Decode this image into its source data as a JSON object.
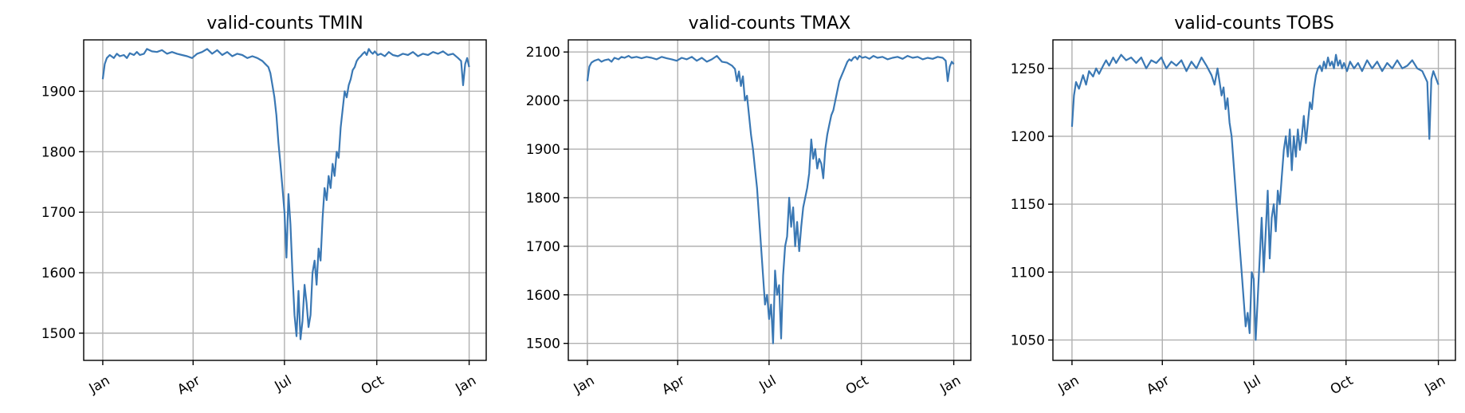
{
  "chart_data": [
    {
      "type": "line",
      "title": "valid-counts TMIN",
      "x_tick_labels": [
        "Jan",
        "Apr",
        "Jul",
        "Oct",
        "Jan"
      ],
      "x_ticks_day": [
        1,
        91,
        182,
        274,
        366
      ],
      "xlim": [
        -18,
        383
      ],
      "ylim": [
        1455,
        1985
      ],
      "y_ticks": [
        1500,
        1600,
        1700,
        1800,
        1900
      ],
      "grid": true,
      "color": "#3a78b4",
      "series": [
        {
          "x": [
            1,
            3,
            5,
            8,
            12,
            15,
            18,
            22,
            25,
            28,
            32,
            35,
            38,
            42,
            45,
            50,
            55,
            60,
            65,
            70,
            75,
            80,
            85,
            90,
            95,
            100,
            105,
            110,
            115,
            120,
            125,
            130,
            135,
            140,
            145,
            150,
            155,
            160,
            163,
            166,
            168,
            170,
            172,
            174,
            176,
            178,
            180,
            182,
            184,
            186,
            188,
            190,
            192,
            194,
            196,
            198,
            200,
            202,
            204,
            206,
            208,
            210,
            212,
            214,
            216,
            218,
            220,
            222,
            224,
            226,
            228,
            230,
            232,
            234,
            236,
            238,
            240,
            242,
            244,
            246,
            248,
            250,
            252,
            254,
            256,
            258,
            260,
            262,
            264,
            266,
            268,
            270,
            272,
            275,
            278,
            282,
            286,
            290,
            295,
            300,
            305,
            310,
            315,
            320,
            325,
            330,
            335,
            340,
            345,
            350,
            355,
            358,
            360,
            362,
            364,
            366
          ],
          "values": [
            1920,
            1945,
            1955,
            1960,
            1955,
            1962,
            1958,
            1960,
            1955,
            1963,
            1960,
            1965,
            1960,
            1962,
            1970,
            1966,
            1965,
            1968,
            1962,
            1965,
            1962,
            1960,
            1958,
            1955,
            1962,
            1965,
            1970,
            1962,
            1968,
            1960,
            1965,
            1958,
            1962,
            1960,
            1955,
            1958,
            1955,
            1950,
            1945,
            1940,
            1930,
            1910,
            1890,
            1860,
            1815,
            1780,
            1740,
            1700,
            1625,
            1730,
            1680,
            1600,
            1530,
            1495,
            1570,
            1490,
            1520,
            1580,
            1550,
            1510,
            1530,
            1600,
            1620,
            1580,
            1640,
            1620,
            1690,
            1740,
            1720,
            1760,
            1740,
            1780,
            1760,
            1800,
            1790,
            1840,
            1870,
            1900,
            1890,
            1910,
            1920,
            1935,
            1940,
            1950,
            1955,
            1958,
            1962,
            1965,
            1960,
            1970,
            1965,
            1962,
            1966,
            1960,
            1962,
            1958,
            1965,
            1960,
            1958,
            1962,
            1960,
            1965,
            1958,
            1962,
            1960,
            1965,
            1962,
            1966,
            1960,
            1962,
            1955,
            1950,
            1910,
            1945,
            1955,
            1940
          ]
        }
      ]
    },
    {
      "type": "line",
      "title": "valid-counts TMAX",
      "x_tick_labels": [
        "Jan",
        "Apr",
        "Jul",
        "Oct",
        "Jan"
      ],
      "x_ticks_day": [
        1,
        91,
        182,
        274,
        366
      ],
      "xlim": [
        -18,
        383
      ],
      "ylim": [
        1465,
        2125
      ],
      "y_ticks": [
        1500,
        1600,
        1700,
        1800,
        1900,
        2000,
        2100
      ],
      "grid": true,
      "color": "#3a78b4",
      "series": [
        {
          "x": [
            1,
            3,
            5,
            8,
            12,
            15,
            18,
            22,
            25,
            28,
            32,
            35,
            38,
            42,
            45,
            50,
            55,
            60,
            65,
            70,
            75,
            80,
            85,
            90,
            95,
            100,
            105,
            110,
            115,
            120,
            125,
            130,
            135,
            140,
            145,
            148,
            150,
            152,
            154,
            156,
            158,
            160,
            162,
            164,
            166,
            168,
            170,
            172,
            174,
            176,
            178,
            180,
            182,
            184,
            186,
            188,
            190,
            192,
            194,
            196,
            198,
            200,
            202,
            204,
            206,
            208,
            210,
            212,
            214,
            216,
            218,
            220,
            222,
            224,
            226,
            228,
            230,
            232,
            234,
            236,
            238,
            240,
            242,
            244,
            246,
            248,
            250,
            252,
            254,
            256,
            258,
            260,
            262,
            264,
            266,
            268,
            270,
            272,
            275,
            278,
            282,
            286,
            290,
            295,
            300,
            305,
            310,
            315,
            320,
            325,
            330,
            335,
            340,
            345,
            350,
            355,
            358,
            360,
            362,
            364,
            366
          ],
          "values": [
            2040,
            2070,
            2078,
            2082,
            2085,
            2080,
            2083,
            2085,
            2080,
            2088,
            2085,
            2090,
            2088,
            2092,
            2088,
            2090,
            2087,
            2090,
            2088,
            2085,
            2090,
            2087,
            2085,
            2082,
            2088,
            2085,
            2090,
            2082,
            2088,
            2080,
            2085,
            2092,
            2080,
            2078,
            2072,
            2065,
            2040,
            2060,
            2030,
            2050,
            2000,
            2010,
            1970,
            1930,
            1900,
            1860,
            1820,
            1760,
            1700,
            1640,
            1580,
            1600,
            1550,
            1580,
            1500,
            1650,
            1600,
            1620,
            1510,
            1640,
            1700,
            1720,
            1800,
            1740,
            1780,
            1700,
            1750,
            1690,
            1740,
            1780,
            1800,
            1820,
            1850,
            1920,
            1880,
            1900,
            1860,
            1880,
            1870,
            1840,
            1900,
            1930,
            1950,
            1970,
            1980,
            2000,
            2020,
            2040,
            2050,
            2060,
            2070,
            2080,
            2085,
            2082,
            2088,
            2090,
            2085,
            2092,
            2088,
            2090,
            2086,
            2092,
            2088,
            2090,
            2085,
            2088,
            2090,
            2086,
            2092,
            2088,
            2090,
            2085,
            2088,
            2086,
            2090,
            2088,
            2082,
            2040,
            2070,
            2080,
            2075
          ]
        }
      ]
    },
    {
      "type": "line",
      "title": "valid-counts TOBS",
      "x_tick_labels": [
        "Jan",
        "Apr",
        "Jul",
        "Oct",
        "Jan"
      ],
      "x_ticks_day": [
        1,
        91,
        182,
        274,
        366
      ],
      "xlim": [
        -18,
        383
      ],
      "ylim": [
        1035,
        1271
      ],
      "y_ticks": [
        1050,
        1100,
        1150,
        1200,
        1250
      ],
      "grid": true,
      "color": "#3a78b4",
      "series": [
        {
          "x": [
            1,
            3,
            5,
            8,
            12,
            15,
            18,
            22,
            25,
            28,
            32,
            35,
            38,
            42,
            45,
            50,
            55,
            60,
            65,
            70,
            75,
            80,
            85,
            90,
            95,
            100,
            105,
            110,
            115,
            120,
            125,
            130,
            135,
            140,
            143,
            146,
            148,
            150,
            152,
            154,
            156,
            158,
            160,
            162,
            164,
            166,
            168,
            170,
            172,
            174,
            176,
            178,
            180,
            182,
            184,
            186,
            188,
            190,
            192,
            194,
            196,
            198,
            200,
            202,
            204,
            206,
            208,
            210,
            212,
            214,
            216,
            218,
            220,
            222,
            224,
            226,
            228,
            230,
            232,
            234,
            236,
            238,
            240,
            242,
            244,
            246,
            248,
            250,
            252,
            254,
            256,
            258,
            260,
            262,
            264,
            266,
            268,
            270,
            272,
            275,
            278,
            282,
            286,
            290,
            295,
            300,
            305,
            310,
            315,
            320,
            325,
            330,
            335,
            340,
            345,
            350,
            355,
            357,
            359,
            361,
            363,
            366
          ],
          "values": [
            1207,
            1230,
            1240,
            1235,
            1245,
            1238,
            1248,
            1244,
            1250,
            1246,
            1252,
            1256,
            1252,
            1258,
            1254,
            1260,
            1256,
            1258,
            1254,
            1258,
            1250,
            1256,
            1254,
            1258,
            1250,
            1255,
            1252,
            1256,
            1248,
            1255,
            1250,
            1258,
            1252,
            1245,
            1238,
            1250,
            1240,
            1230,
            1236,
            1220,
            1228,
            1210,
            1200,
            1180,
            1160,
            1140,
            1120,
            1100,
            1080,
            1060,
            1070,
            1055,
            1100,
            1095,
            1050,
            1080,
            1110,
            1140,
            1100,
            1130,
            1160,
            1110,
            1140,
            1150,
            1130,
            1160,
            1150,
            1170,
            1190,
            1200,
            1185,
            1205,
            1175,
            1200,
            1185,
            1205,
            1190,
            1200,
            1215,
            1195,
            1210,
            1225,
            1220,
            1235,
            1245,
            1250,
            1252,
            1248,
            1255,
            1250,
            1258,
            1252,
            1255,
            1250,
            1260,
            1252,
            1256,
            1250,
            1254,
            1248,
            1255,
            1250,
            1254,
            1248,
            1256,
            1250,
            1255,
            1248,
            1254,
            1250,
            1256,
            1250,
            1252,
            1256,
            1250,
            1248,
            1240,
            1198,
            1242,
            1248,
            1244,
            1238
          ]
        }
      ]
    }
  ]
}
